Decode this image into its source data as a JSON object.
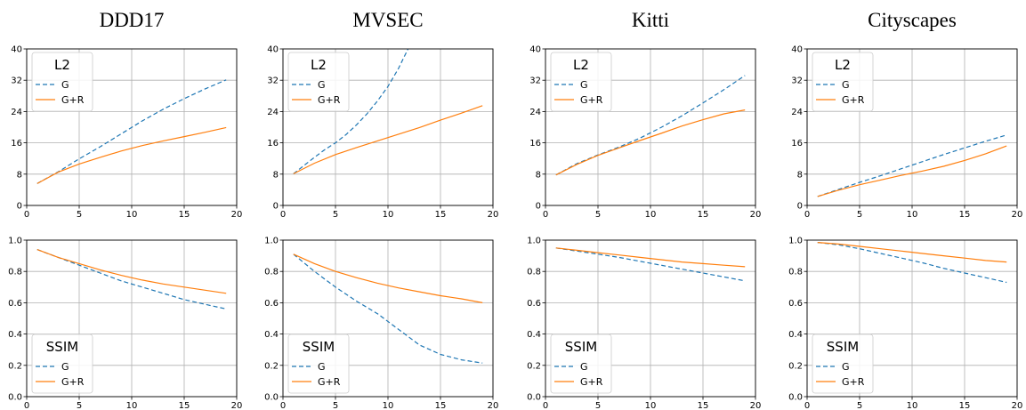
{
  "figure": {
    "colors": {
      "G": "#1f77b4",
      "G+R": "#ff7f0e",
      "grid": "#b0b0b0"
    },
    "columns": [
      "DDD17",
      "MVSEC",
      "Kitti",
      "Cityscapes"
    ]
  },
  "chart_data": [
    {
      "type": "line",
      "dataset": "DDD17",
      "metric": "L2",
      "title": "DDD17",
      "legend_title": "L2",
      "legend": "top-left",
      "xlim": [
        0,
        20
      ],
      "ylim": [
        0,
        40
      ],
      "xticks": [
        0,
        5,
        10,
        15,
        20
      ],
      "yticks": [
        0,
        8,
        16,
        24,
        32,
        40
      ],
      "grid": true,
      "x": [
        1,
        3,
        5,
        7,
        9,
        11,
        13,
        15,
        17,
        19
      ],
      "series": [
        {
          "name": "G",
          "style": "dashed",
          "values": [
            5.6,
            8.6,
            11.9,
            15.0,
            18.3,
            21.6,
            24.6,
            27.3,
            29.8,
            32.1
          ]
        },
        {
          "name": "G+R",
          "style": "solid",
          "values": [
            5.6,
            8.5,
            10.6,
            12.3,
            13.9,
            15.3,
            16.5,
            17.6,
            18.7,
            19.9
          ]
        }
      ]
    },
    {
      "type": "line",
      "dataset": "MVSEC",
      "metric": "L2",
      "title": "MVSEC",
      "legend_title": "L2",
      "legend": "top-left",
      "xlim": [
        0,
        20
      ],
      "ylim": [
        0,
        40
      ],
      "xticks": [
        0,
        5,
        10,
        15,
        20
      ],
      "yticks": [
        0,
        8,
        16,
        24,
        32,
        40
      ],
      "grid": true,
      "x": [
        1,
        2,
        3,
        4,
        5,
        6,
        7,
        8,
        9,
        10,
        11,
        12
      ],
      "series": [
        {
          "name": "G",
          "style": "dashed",
          "values": [
            8.1,
            10.2,
            12.3,
            14.3,
            16.0,
            18.1,
            20.6,
            23.4,
            26.7,
            30.4,
            35.0,
            40.5
          ]
        }
      ]
    },
    {
      "type": "line",
      "dataset": "MVSEC",
      "metric": "L2 (G+R)",
      "hidden": true,
      "x": [
        1,
        3,
        5,
        7,
        9,
        11,
        13,
        15,
        17,
        19
      ],
      "series": [
        {
          "name": "G+R",
          "style": "solid",
          "values": [
            8.1,
            10.8,
            13.0,
            14.8,
            16.5,
            18.2,
            19.9,
            21.8,
            23.6,
            25.5
          ]
        }
      ]
    },
    {
      "type": "line",
      "dataset": "Kitti",
      "metric": "L2",
      "title": "Kitti",
      "legend_title": "L2",
      "legend": "top-left",
      "xlim": [
        0,
        20
      ],
      "ylim": [
        0,
        40
      ],
      "xticks": [
        0,
        5,
        10,
        15,
        20
      ],
      "yticks": [
        0,
        8,
        16,
        24,
        32,
        40
      ],
      "grid": true,
      "x": [
        1,
        3,
        5,
        7,
        9,
        11,
        13,
        15,
        17,
        19
      ],
      "series": [
        {
          "name": "G",
          "style": "dashed",
          "values": [
            7.8,
            10.7,
            12.9,
            14.9,
            17.2,
            19.9,
            22.9,
            26.2,
            29.6,
            33.2
          ]
        },
        {
          "name": "G+R",
          "style": "solid",
          "values": [
            7.8,
            10.5,
            12.8,
            14.7,
            16.6,
            18.4,
            20.3,
            21.9,
            23.4,
            24.4
          ]
        }
      ]
    },
    {
      "type": "line",
      "dataset": "Cityscapes",
      "metric": "L2",
      "title": "Cityscapes",
      "legend_title": "L2",
      "legend": "top-left",
      "xlim": [
        0,
        20
      ],
      "ylim": [
        0,
        40
      ],
      "xticks": [
        0,
        5,
        10,
        15,
        20
      ],
      "yticks": [
        0,
        8,
        16,
        24,
        32,
        40
      ],
      "grid": true,
      "x": [
        1,
        3,
        5,
        7,
        9,
        11,
        13,
        15,
        17,
        19
      ],
      "series": [
        {
          "name": "G",
          "style": "dashed",
          "values": [
            2.3,
            4.1,
            5.9,
            7.6,
            9.4,
            11.2,
            13.0,
            14.7,
            16.4,
            18.0
          ]
        },
        {
          "name": "G+R",
          "style": "solid",
          "values": [
            2.3,
            3.9,
            5.3,
            6.5,
            7.7,
            8.8,
            10.0,
            11.5,
            13.2,
            15.2
          ]
        }
      ]
    },
    {
      "type": "line",
      "dataset": "DDD17",
      "metric": "SSIM",
      "legend_title": "SSIM",
      "legend": "bottom-left",
      "xlim": [
        0,
        20
      ],
      "ylim": [
        0,
        1.0
      ],
      "xticks": [
        0,
        5,
        10,
        15,
        20
      ],
      "yticks": [
        0.0,
        0.2,
        0.4,
        0.6,
        0.8,
        1.0
      ],
      "grid": true,
      "x": [
        1,
        3,
        5,
        7,
        9,
        11,
        13,
        15,
        17,
        19
      ],
      "series": [
        {
          "name": "G",
          "style": "dashed",
          "values": [
            0.94,
            0.89,
            0.84,
            0.79,
            0.74,
            0.7,
            0.66,
            0.62,
            0.59,
            0.56
          ]
        },
        {
          "name": "G+R",
          "style": "solid",
          "values": [
            0.94,
            0.89,
            0.85,
            0.81,
            0.775,
            0.745,
            0.72,
            0.7,
            0.68,
            0.66
          ]
        }
      ]
    },
    {
      "type": "line",
      "dataset": "MVSEC",
      "metric": "SSIM",
      "legend_title": "SSIM",
      "legend": "bottom-left",
      "xlim": [
        0,
        20
      ],
      "ylim": [
        0,
        1.0
      ],
      "xticks": [
        0,
        5,
        10,
        15,
        20
      ],
      "yticks": [
        0.0,
        0.2,
        0.4,
        0.6,
        0.8,
        1.0
      ],
      "grid": true,
      "x": [
        1,
        3,
        5,
        7,
        9,
        11,
        13,
        15,
        17,
        19
      ],
      "series": [
        {
          "name": "G",
          "style": "dashed",
          "values": [
            0.91,
            0.8,
            0.7,
            0.61,
            0.53,
            0.43,
            0.33,
            0.27,
            0.235,
            0.215
          ]
        },
        {
          "name": "G+R",
          "style": "solid",
          "values": [
            0.91,
            0.85,
            0.8,
            0.76,
            0.725,
            0.695,
            0.67,
            0.645,
            0.625,
            0.6
          ]
        }
      ]
    },
    {
      "type": "line",
      "dataset": "Kitti",
      "metric": "SSIM",
      "legend_title": "SSIM",
      "legend": "bottom-left",
      "xlim": [
        0,
        20
      ],
      "ylim": [
        0,
        1.0
      ],
      "xticks": [
        0,
        5,
        10,
        15,
        20
      ],
      "yticks": [
        0.0,
        0.2,
        0.4,
        0.6,
        0.8,
        1.0
      ],
      "grid": true,
      "x": [
        1,
        3,
        5,
        7,
        9,
        11,
        13,
        15,
        17,
        19
      ],
      "series": [
        {
          "name": "G",
          "style": "dashed",
          "values": [
            0.95,
            0.93,
            0.91,
            0.89,
            0.865,
            0.84,
            0.815,
            0.79,
            0.765,
            0.74
          ]
        },
        {
          "name": "G+R",
          "style": "solid",
          "values": [
            0.95,
            0.935,
            0.92,
            0.905,
            0.89,
            0.875,
            0.86,
            0.85,
            0.84,
            0.83
          ]
        }
      ]
    },
    {
      "type": "line",
      "dataset": "Cityscapes",
      "metric": "SSIM",
      "legend_title": "SSIM",
      "legend": "bottom-left",
      "xlim": [
        0,
        20
      ],
      "ylim": [
        0,
        1.0
      ],
      "xticks": [
        0,
        5,
        10,
        15,
        20
      ],
      "yticks": [
        0.0,
        0.2,
        0.4,
        0.6,
        0.8,
        1.0
      ],
      "grid": true,
      "x": [
        1,
        3,
        5,
        7,
        9,
        11,
        13,
        15,
        17,
        19
      ],
      "series": [
        {
          "name": "G",
          "style": "dashed",
          "values": [
            0.985,
            0.97,
            0.945,
            0.915,
            0.885,
            0.855,
            0.82,
            0.79,
            0.76,
            0.73
          ]
        },
        {
          "name": "G+R",
          "style": "solid",
          "values": [
            0.985,
            0.975,
            0.96,
            0.945,
            0.93,
            0.915,
            0.9,
            0.885,
            0.87,
            0.86
          ]
        }
      ]
    }
  ]
}
